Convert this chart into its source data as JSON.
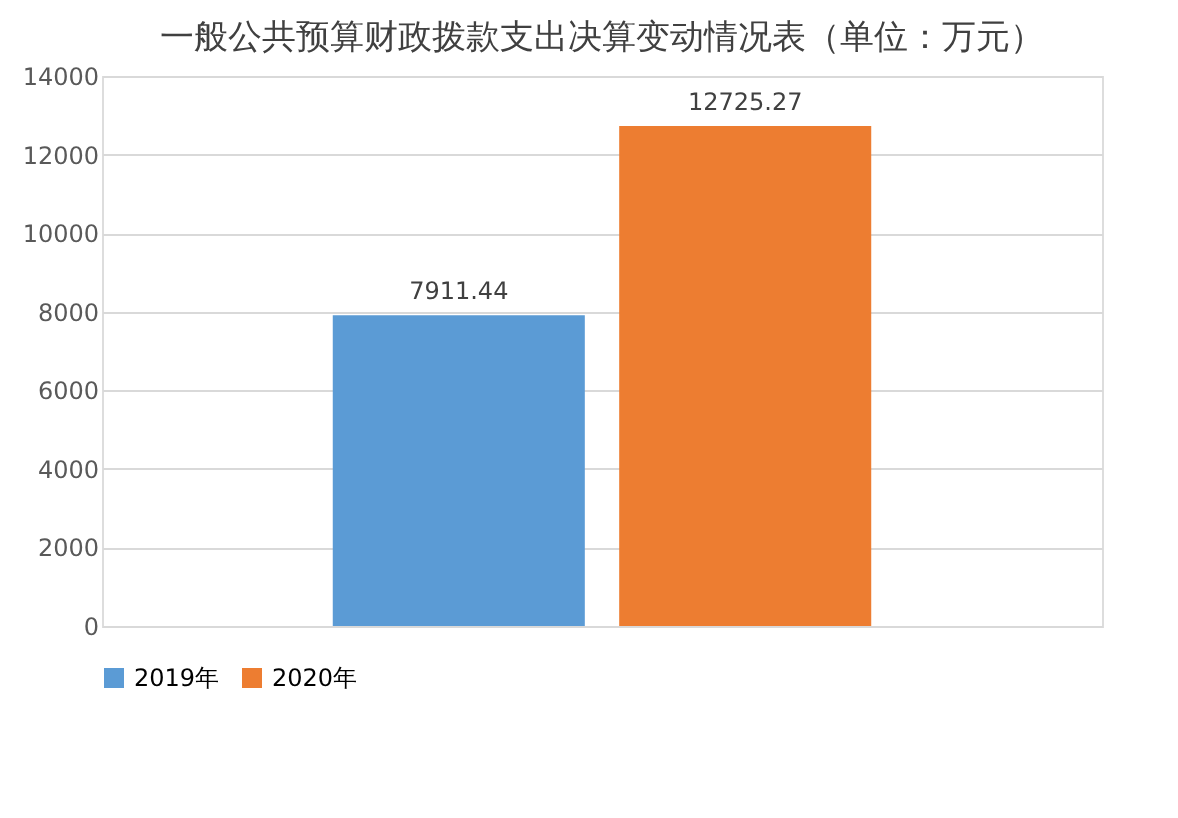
{
  "chart_data": {
    "type": "bar",
    "title": "一般公共预算财政拨款支出决算变动情况表（单位：万元）",
    "categories": [
      null
    ],
    "series": [
      {
        "name": "2019年",
        "color": "#5b9bd5",
        "values": [
          7911.44
        ]
      },
      {
        "name": "2020年",
        "color": "#ed7d31",
        "values": [
          12725.27
        ]
      }
    ],
    "ylim": [
      0,
      14000
    ],
    "yticks": [
      0,
      2000,
      4000,
      6000,
      8000,
      10000,
      12000,
      14000
    ],
    "grid": "y",
    "legend": "bottom",
    "data_labels": true
  }
}
